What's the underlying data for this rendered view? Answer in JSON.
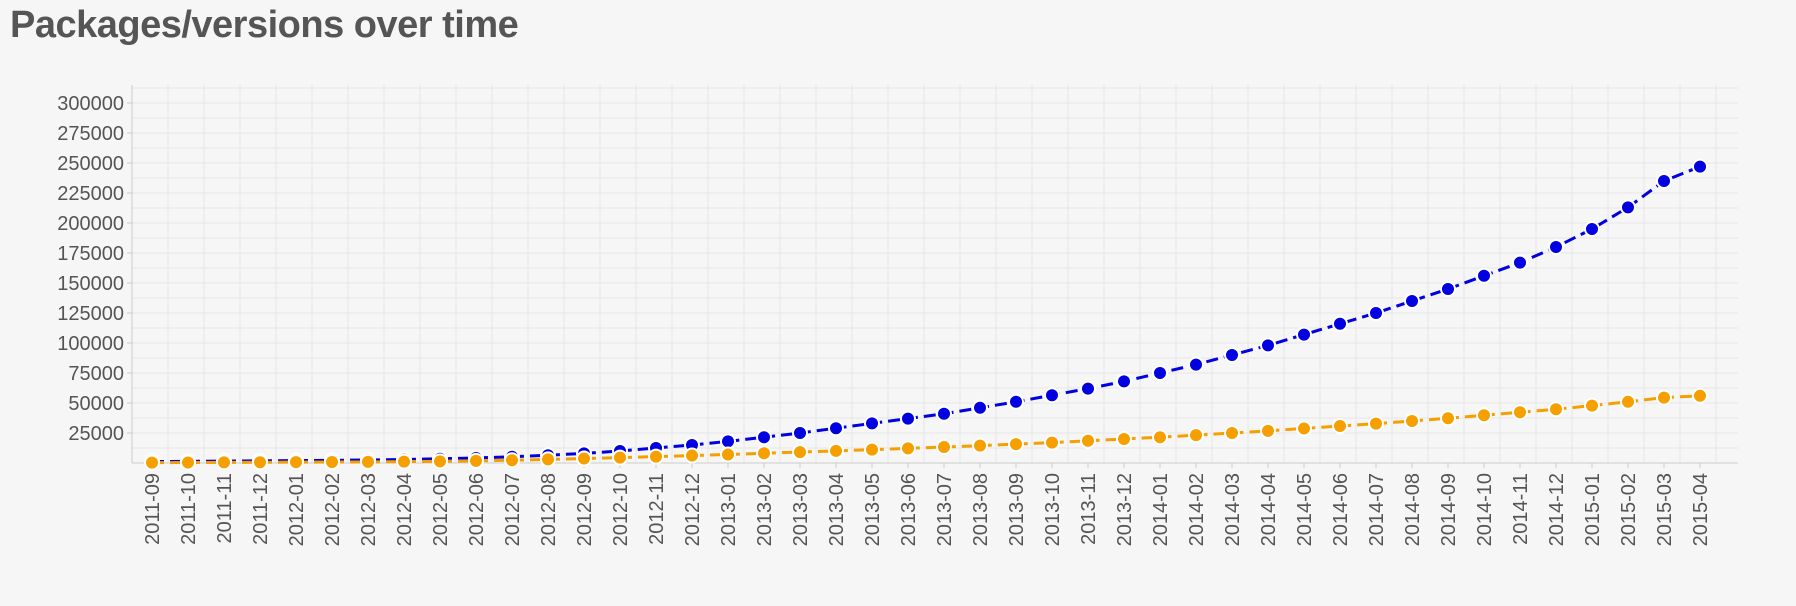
{
  "page": {
    "title": "Packages/versions over time"
  },
  "chart_data": {
    "type": "line",
    "title": "Packages/versions over time",
    "xlabel": "",
    "ylabel": "",
    "ylim": [
      0,
      315000
    ],
    "yticks": [
      25000,
      50000,
      75000,
      100000,
      125000,
      150000,
      175000,
      200000,
      225000,
      250000,
      275000,
      300000
    ],
    "grid": true,
    "legend": "none",
    "x": [
      "2011-09",
      "2011-10",
      "2011-11",
      "2011-12",
      "2012-01",
      "2012-02",
      "2012-03",
      "2012-04",
      "2012-05",
      "2012-06",
      "2012-07",
      "2012-08",
      "2012-09",
      "2012-10",
      "2012-11",
      "2012-12",
      "2013-01",
      "2013-02",
      "2013-03",
      "2013-04",
      "2013-05",
      "2013-06",
      "2013-07",
      "2013-08",
      "2013-09",
      "2013-10",
      "2013-11",
      "2013-12",
      "2014-01",
      "2014-02",
      "2014-03",
      "2014-04",
      "2014-05",
      "2014-06",
      "2014-07",
      "2014-08",
      "2014-09",
      "2014-10",
      "2014-11",
      "2014-12",
      "2015-01",
      "2015-02",
      "2015-03",
      "2015-04"
    ],
    "series": [
      {
        "color": "#0000e0",
        "values": [
          1200,
          1400,
          1600,
          1800,
          2000,
          2200,
          2500,
          2900,
          3500,
          4200,
          5200,
          6500,
          8000,
          10000,
          12500,
          15000,
          18000,
          21500,
          25000,
          29000,
          33000,
          37000,
          41000,
          46000,
          51000,
          56500,
          62000,
          68000,
          75000,
          82000,
          90000,
          98000,
          107000,
          116000,
          125000,
          135000,
          145000,
          156000,
          167000,
          180000,
          195000,
          213000,
          235000,
          247000
        ]
      },
      {
        "color": "#f5a000",
        "values": [
          300,
          400,
          500,
          600,
          700,
          800,
          900,
          1100,
          1400,
          1800,
          2300,
          3000,
          3700,
          4500,
          5300,
          6200,
          7100,
          8100,
          9100,
          10100,
          11100,
          12200,
          13300,
          14500,
          15700,
          17000,
          18500,
          20000,
          21500,
          23200,
          25000,
          26800,
          28800,
          30800,
          32800,
          35000,
          37300,
          39800,
          42300,
          44800,
          47800,
          51000,
          54500,
          56000
        ]
      }
    ]
  }
}
